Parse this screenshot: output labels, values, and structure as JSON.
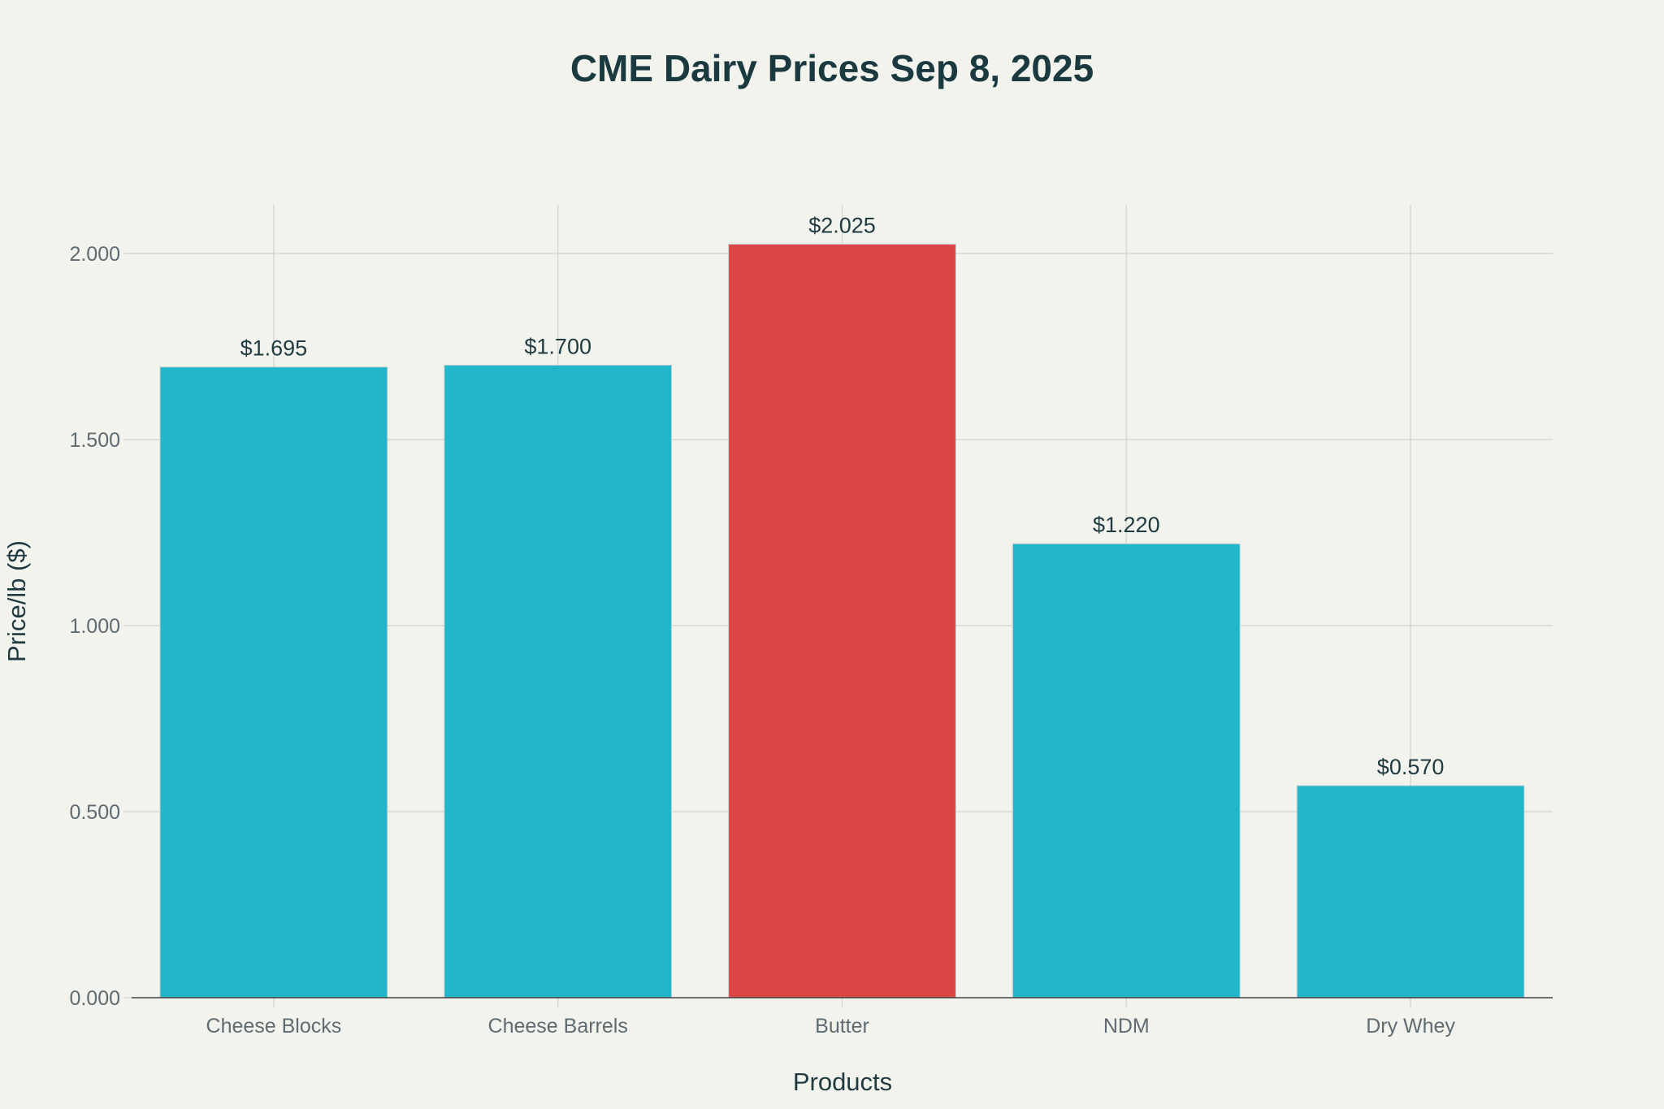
{
  "chart_data": {
    "type": "bar",
    "title": "CME Dairy Prices Sep 8, 2025",
    "xlabel": "Products",
    "ylabel": "Price/lb ($)",
    "categories": [
      "Cheese Blocks",
      "Cheese Barrels",
      "Butter",
      "NDM",
      "Dry Whey"
    ],
    "values": [
      1.695,
      1.7,
      2.025,
      1.22,
      0.57
    ],
    "data_labels": [
      "$1.695",
      "$1.700",
      "$2.025",
      "$1.220",
      "$0.570"
    ],
    "colors": [
      "#21b6cc",
      "#21b6cc",
      "#db4545",
      "#21b6cc",
      "#21b6cc"
    ],
    "ylim": [
      0,
      2.13
    ],
    "yticks": [
      0,
      0.5,
      1.0,
      1.5,
      2.0
    ],
    "ytick_labels": [
      "0.000",
      "0.500",
      "1.000",
      "1.500",
      "2.000"
    ],
    "grid": true,
    "legend": "none"
  }
}
